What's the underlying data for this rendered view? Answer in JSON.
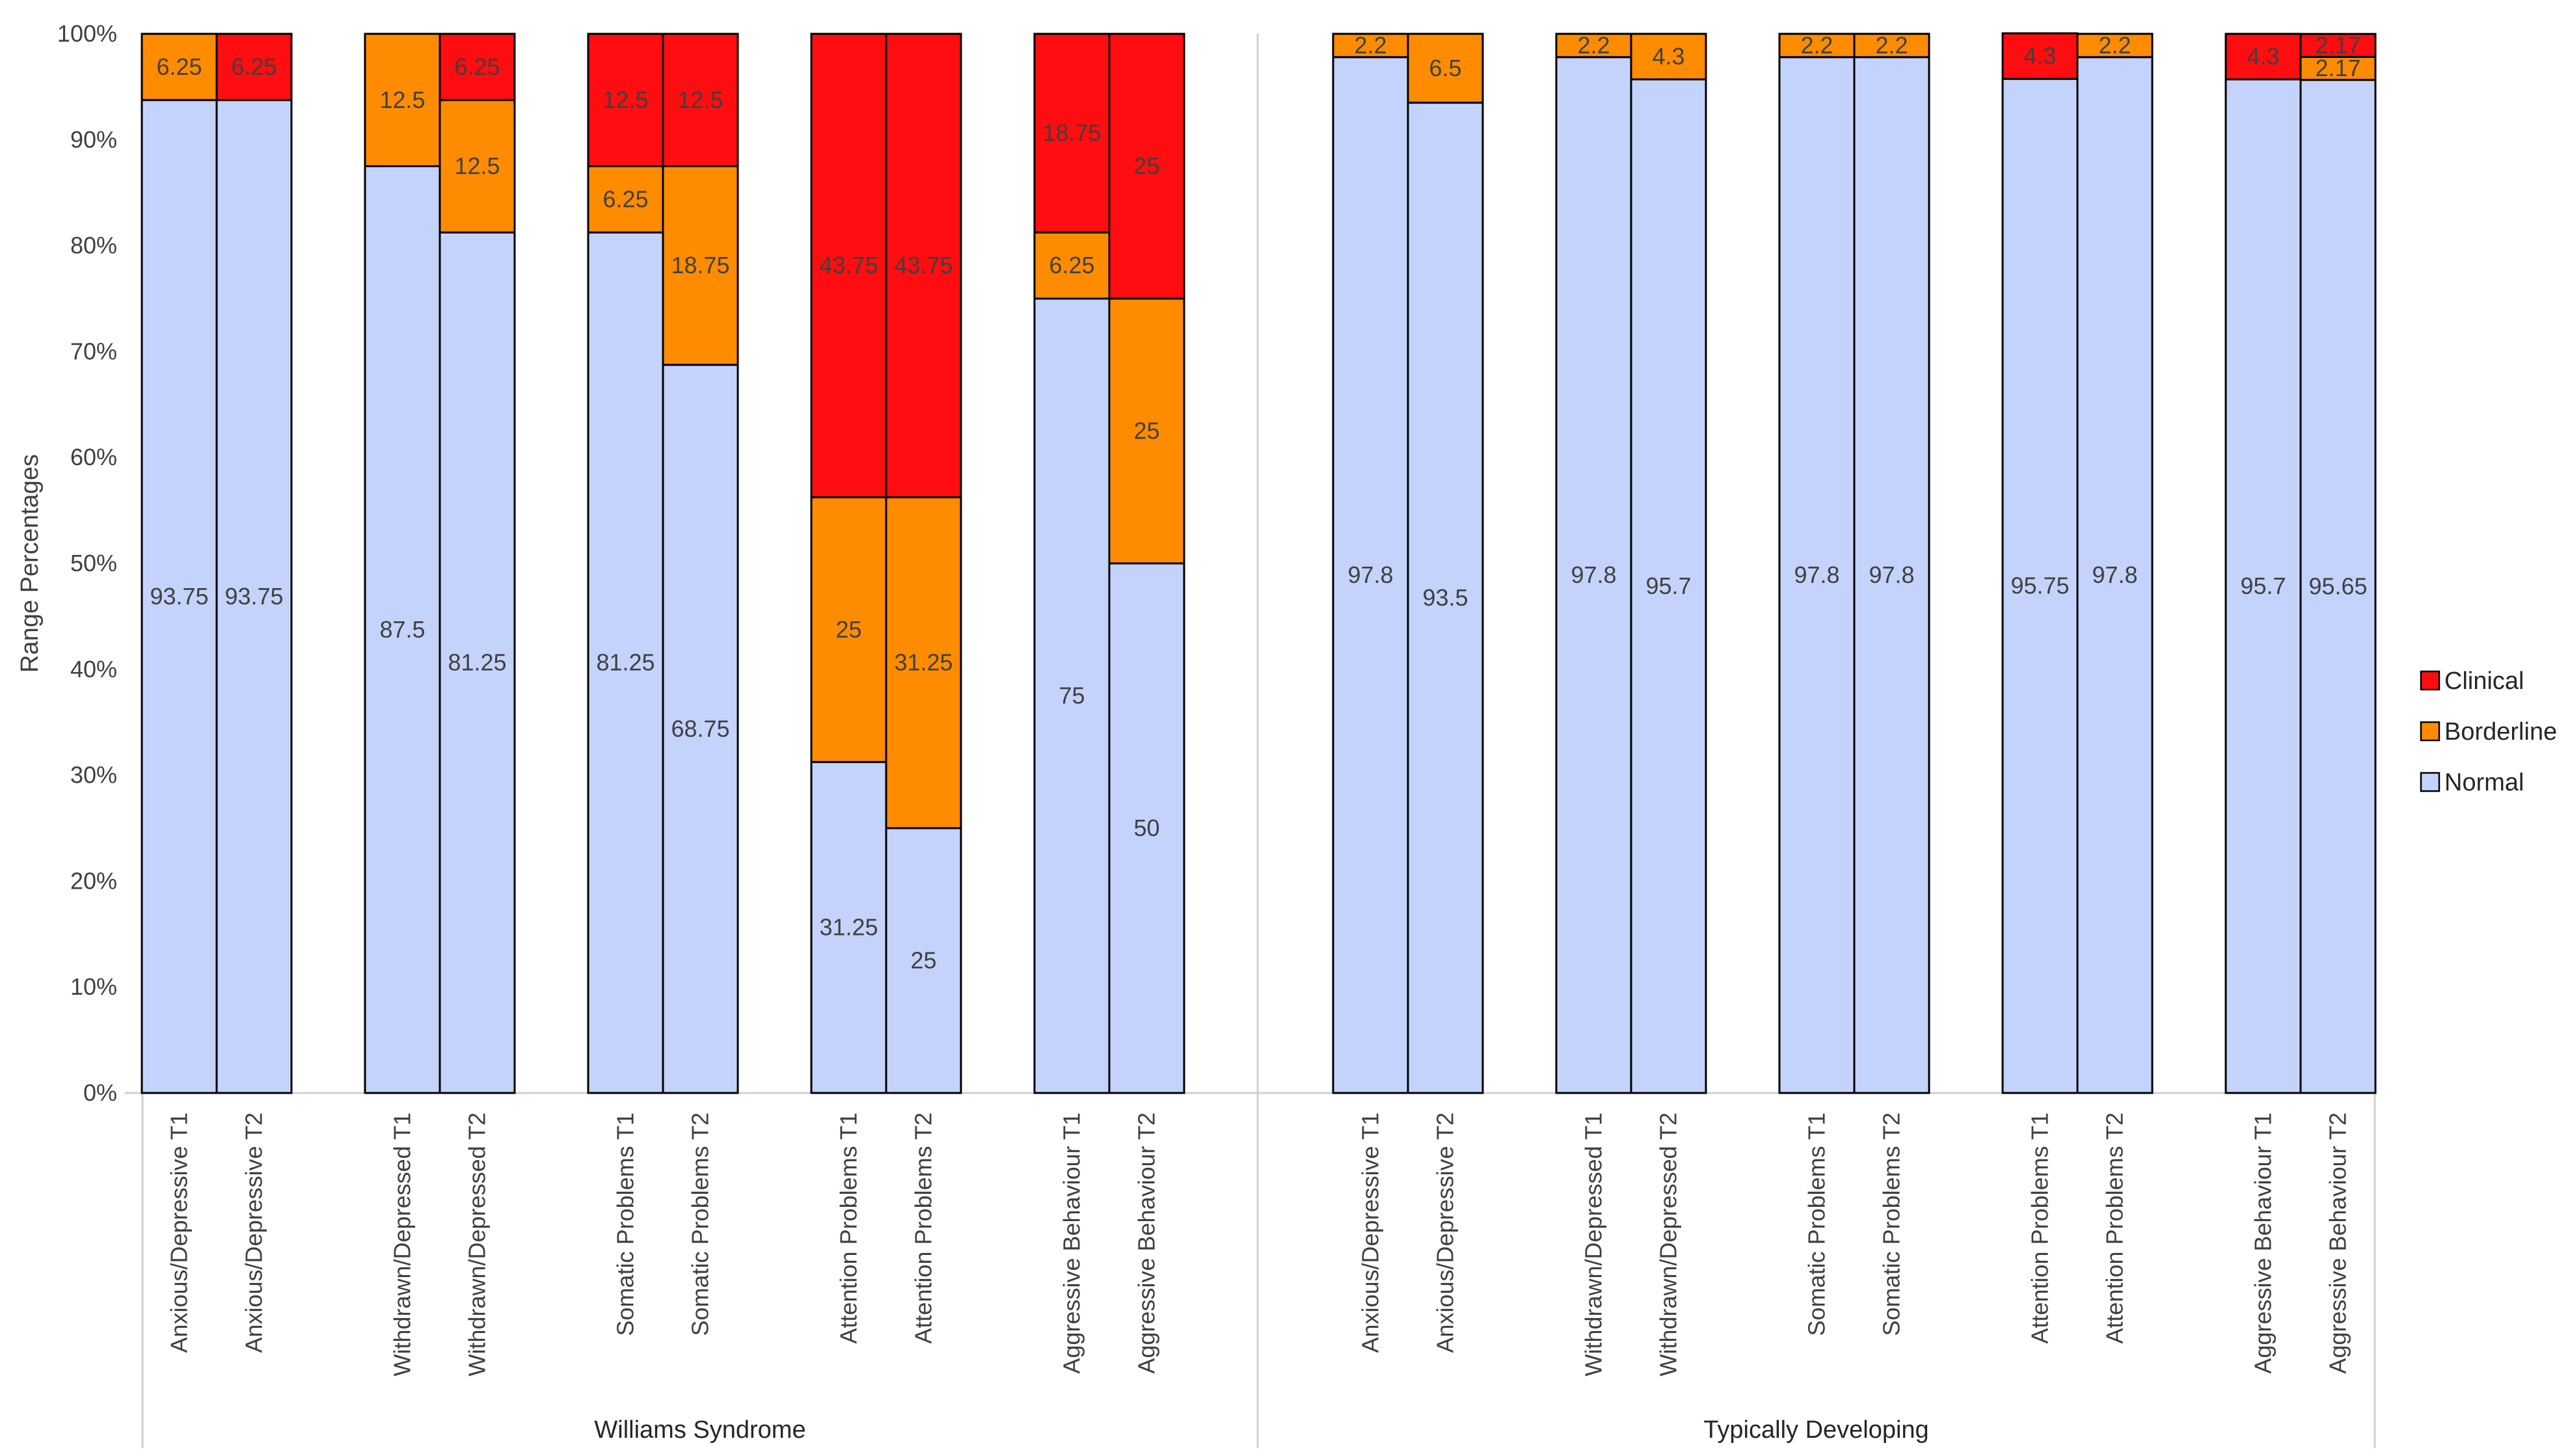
{
  "chart_data": {
    "type": "bar",
    "stacked": true,
    "title": "",
    "xlabel": "",
    "ylabel": "Range Percentages",
    "ylim": [
      0,
      100
    ],
    "yticks": [
      "0%",
      "10%",
      "20%",
      "30%",
      "40%",
      "50%",
      "60%",
      "70%",
      "80%",
      "90%",
      "100%"
    ],
    "groups": [
      {
        "name": "Williams Syndrome",
        "categories": [
          "Anxious/Depressive T1",
          "Anxious/Depressive T2",
          "Withdrawn/Depressed T1",
          "Withdrawn/Depressed T2",
          "Somatic Problems T1",
          "Somatic Problems T2",
          "Attention Problems T1",
          "Attention Problems T2",
          "Aggressive Behaviour T1",
          "Aggressive Behaviour T2"
        ],
        "series": [
          {
            "name": "Normal",
            "values": [
              93.75,
              93.75,
              87.5,
              81.25,
              81.25,
              68.75,
              31.25,
              25,
              75,
              50
            ],
            "labels": [
              "93.75",
              "93.75",
              "87.5",
              "81.25",
              "81.25",
              "68.75",
              "31.25",
              "25",
              "75",
              "50"
            ]
          },
          {
            "name": "Borderline",
            "values": [
              6.25,
              0,
              12.5,
              12.5,
              6.25,
              18.75,
              25,
              31.25,
              6.25,
              25
            ],
            "labels": [
              "6.25",
              "",
              "12.5",
              "12.5",
              "6.25",
              "18.75",
              "25",
              "31.25",
              "6.25",
              "25"
            ]
          },
          {
            "name": "Clinical",
            "values": [
              0,
              6.25,
              0,
              6.25,
              12.5,
              12.5,
              43.75,
              43.75,
              18.75,
              25
            ],
            "labels": [
              "",
              "6.25",
              "",
              "6.25",
              "12.5",
              "12.5",
              "43.75",
              "43.75",
              "18.75",
              "25"
            ]
          }
        ]
      },
      {
        "name": "Typically Developing",
        "categories": [
          "Anxious/Depressive T1",
          "Anxious/Depressive T2",
          "Withdrawn/Depressed T1",
          "Withdrawn/Depressed T2",
          "Somatic Problems T1",
          "Somatic Problems T2",
          "Attention Problems T1",
          "Attention Problems T2",
          "Aggressive Behaviour T1",
          "Aggressive Behaviour T2"
        ],
        "series": [
          {
            "name": "Normal",
            "values": [
              97.8,
              93.5,
              97.8,
              95.7,
              97.8,
              97.8,
              95.75,
              97.8,
              95.7,
              95.65
            ],
            "labels": [
              "97.8",
              "93.5",
              "97.8",
              "95.7",
              "97.8",
              "97.8",
              "95.75",
              "97.8",
              "95.7",
              "95.65"
            ]
          },
          {
            "name": "Borderline",
            "values": [
              2.2,
              6.5,
              2.2,
              4.3,
              2.2,
              2.2,
              0,
              2.2,
              0,
              2.17
            ],
            "labels": [
              "2.2",
              "6.5",
              "2.2",
              "4.3",
              "2.2",
              "2.2",
              "",
              "2.2",
              "",
              "2.17"
            ]
          },
          {
            "name": "Clinical",
            "values": [
              0,
              0,
              0,
              0,
              0,
              0,
              4.3,
              0,
              4.3,
              2.17
            ],
            "labels": [
              "",
              "",
              "",
              "",
              "",
              "",
              "4.3",
              "",
              "4.3",
              "2.17"
            ]
          }
        ]
      }
    ],
    "legend": {
      "position": "right",
      "items": [
        {
          "name": "Clinical",
          "color": "#FF0D11"
        },
        {
          "name": "Borderline",
          "color": "#FF8C00"
        },
        {
          "name": "Normal",
          "color": "#C4D3FB"
        }
      ]
    },
    "colors": {
      "Normal": "#C4D3FB",
      "Borderline": "#FF8C00",
      "Clinical": "#FF0D11",
      "border": "#000000",
      "axis": "#D0D0D0",
      "text": "#404040"
    }
  }
}
